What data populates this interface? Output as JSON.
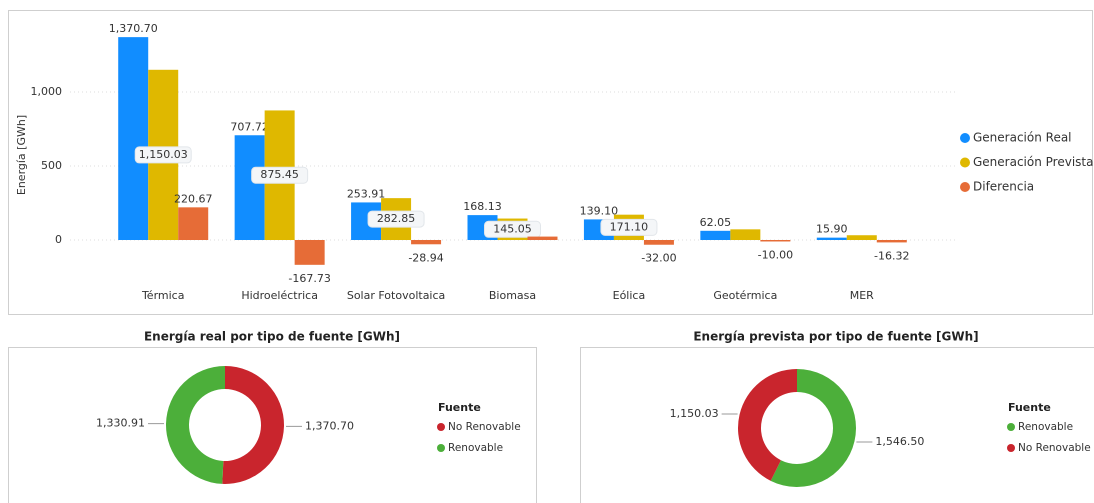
{
  "chart_data": [
    {
      "type": "bar",
      "y_label": "Energía [GWh]",
      "categories": [
        "Térmica",
        "Hidroeléctrica",
        "Solar Fotovoltaica",
        "Biomasa",
        "Eólica",
        "Geotérmica",
        "MER"
      ],
      "series": [
        {
          "name": "Generación Real",
          "color": "#118dff",
          "values": [
            1370.7,
            707.72,
            253.91,
            168.13,
            139.1,
            62.05,
            15.9
          ],
          "value_labels": [
            "1,370.70",
            "707.72",
            "253.91",
            "168.13",
            "139.10",
            "62.05",
            "15.90"
          ]
        },
        {
          "name": "Generación Prevista",
          "color": "#dfb800",
          "values": [
            1150.03,
            875.45,
            282.85,
            145.05,
            171.1,
            72.05,
            32.22
          ],
          "value_labels": [
            "1,150.03",
            "875.45",
            "282.85",
            "145.05",
            "171.10",
            null,
            null
          ]
        },
        {
          "name": "Diferencia",
          "color": "#e66c37",
          "values": [
            220.67,
            -167.73,
            -28.94,
            23.08,
            -32.0,
            -10.0,
            -16.32
          ],
          "value_labels": [
            "220.67",
            "-167.73",
            "-28.94",
            null,
            "-32.00",
            "-10.00",
            "-16.32"
          ]
        }
      ],
      "ylim": [
        -200,
        1450
      ],
      "yticks": [
        0,
        500,
        {
          "value": 1000,
          "label": "1,000"
        }
      ],
      "grid": true,
      "legend": "right"
    },
    {
      "type": "donut",
      "title": "Energía real por tipo de fuente [GWh]",
      "legend_title": "Fuente",
      "categories": [
        "No Renovable",
        "Renovable"
      ],
      "values": [
        1370.7,
        1330.91
      ],
      "value_labels": [
        "1,370.70",
        "1,330.91"
      ],
      "colors": [
        "#c9252d",
        "#4caf3a"
      ],
      "legend": "right"
    },
    {
      "type": "donut",
      "title": "Energía prevista por tipo de fuente [GWh]",
      "legend_title": "Fuente",
      "categories": [
        "Renovable",
        "No Renovable"
      ],
      "values": [
        1546.5,
        1150.03
      ],
      "value_labels": [
        "1,546.50",
        "1,150.03"
      ],
      "colors": [
        "#4caf3a",
        "#c9252d"
      ],
      "legend": "right"
    }
  ]
}
